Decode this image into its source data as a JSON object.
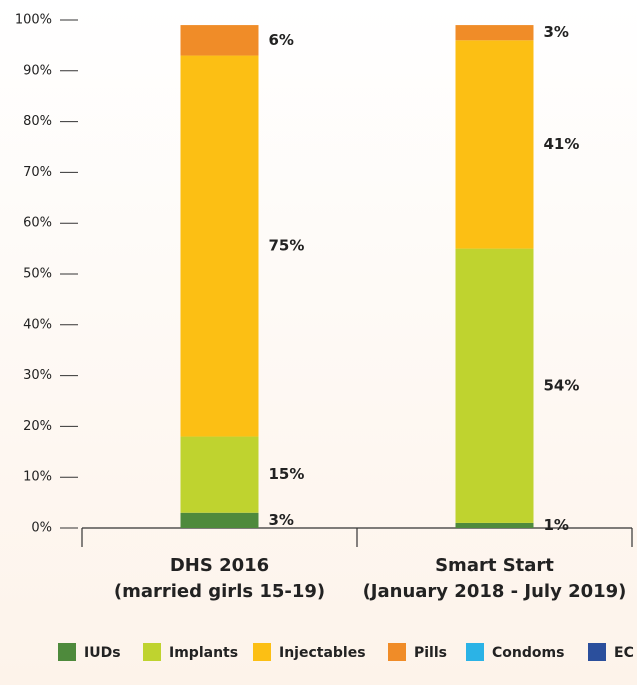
{
  "chart_data": {
    "type": "stacked_bar",
    "categories": [
      [
        "DHS 2016",
        "(married girls 15-19)"
      ],
      [
        "Smart Start",
        "(January 2018 - July 2019)"
      ]
    ],
    "series": [
      {
        "name": "IUDs",
        "color": "#4e8a3c",
        "values": [
          3,
          1
        ],
        "value_labels": [
          "3%",
          "1%"
        ]
      },
      {
        "name": "Implants",
        "color": "#bfd32f",
        "values": [
          15,
          54
        ],
        "value_labels": [
          "15%",
          "54%"
        ]
      },
      {
        "name": "Injectables",
        "color": "#fcbf14",
        "values": [
          75,
          41
        ],
        "value_labels": [
          "75%",
          "41%"
        ]
      },
      {
        "name": "Pills",
        "color": "#f08c28",
        "values": [
          6,
          3
        ],
        "value_labels": [
          "6%",
          "3%"
        ]
      },
      {
        "name": "Condoms",
        "color": "#2bb3e6",
        "values": [
          0,
          0
        ]
      },
      {
        "name": "EC",
        "color": "#2b4f9c",
        "values": [
          0,
          0
        ]
      }
    ],
    "ylim": [
      0,
      100
    ],
    "yticks": [
      {
        "value": 0,
        "label": "0%"
      },
      {
        "value": 10,
        "label": "10%"
      },
      {
        "value": 20,
        "label": "20%"
      },
      {
        "value": 30,
        "label": "30%"
      },
      {
        "value": 40,
        "label": "40%"
      },
      {
        "value": 50,
        "label": "50%"
      },
      {
        "value": 60,
        "label": "60%"
      },
      {
        "value": 70,
        "label": "70%"
      },
      {
        "value": 80,
        "label": "80%"
      },
      {
        "value": 90,
        "label": "90%"
      },
      {
        "value": 100,
        "label": "100%"
      }
    ],
    "legend": "bottom"
  }
}
